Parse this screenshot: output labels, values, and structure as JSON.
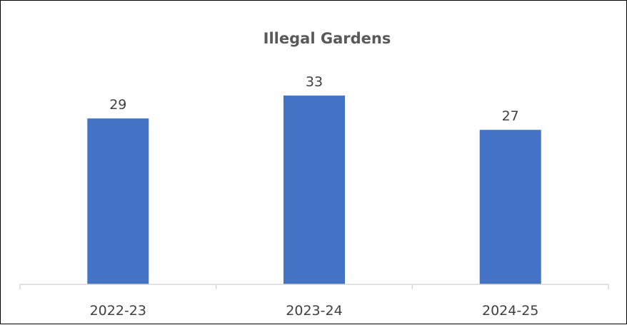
{
  "chart_data": {
    "type": "bar",
    "title": "Illegal Gardens",
    "categories": [
      "2022-23",
      "2023-24",
      "2024-25"
    ],
    "values": [
      29,
      33,
      27
    ],
    "xlabel": "",
    "ylabel": "",
    "ylim": [
      0,
      35
    ],
    "grid": false,
    "legend": "none",
    "data_labels": true,
    "bar_color": "#4472C4",
    "axis_color": "#D9D9D9"
  }
}
